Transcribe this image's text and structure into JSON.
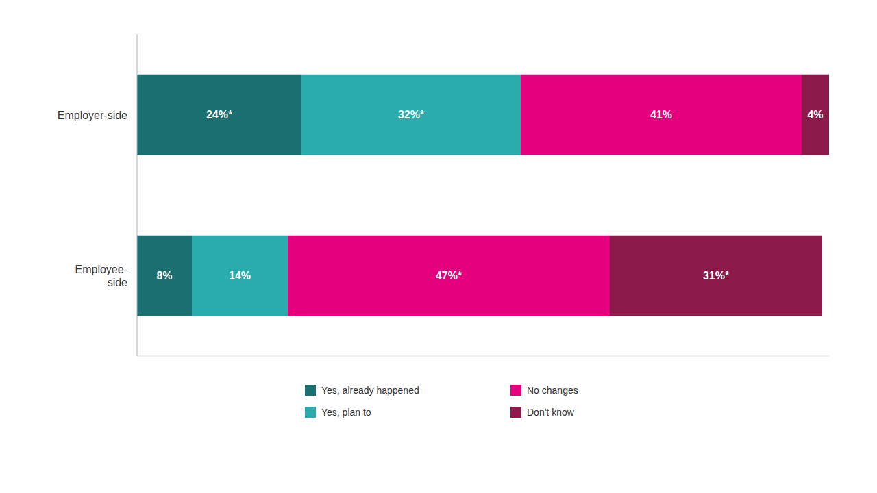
{
  "chart_data": {
    "type": "bar",
    "orientation": "horizontal",
    "stacked": true,
    "data_labels": true,
    "tick_labels": "y",
    "legend": "bottom",
    "grid": false,
    "categories": [
      "Employer-side",
      "Employee-\nside"
    ],
    "xlim": [
      0,
      101
    ],
    "series": [
      {
        "name": "Yes, already happened",
        "color": "#1a7070",
        "values": [
          24,
          8
        ],
        "value_labels": [
          "24%*",
          "8%"
        ]
      },
      {
        "name": "Yes, plan to",
        "color": "#2aacac",
        "values": [
          32,
          14
        ],
        "value_labels": [
          "32%*",
          "14%"
        ]
      },
      {
        "name": "No changes",
        "color": "#e5007e",
        "values": [
          41,
          47
        ],
        "value_labels": [
          "41%",
          "47%*"
        ]
      },
      {
        "name": "Don't know",
        "color": "#8b1a4a",
        "values": [
          4,
          31
        ],
        "value_labels": [
          "4%",
          "31%*"
        ]
      }
    ]
  }
}
